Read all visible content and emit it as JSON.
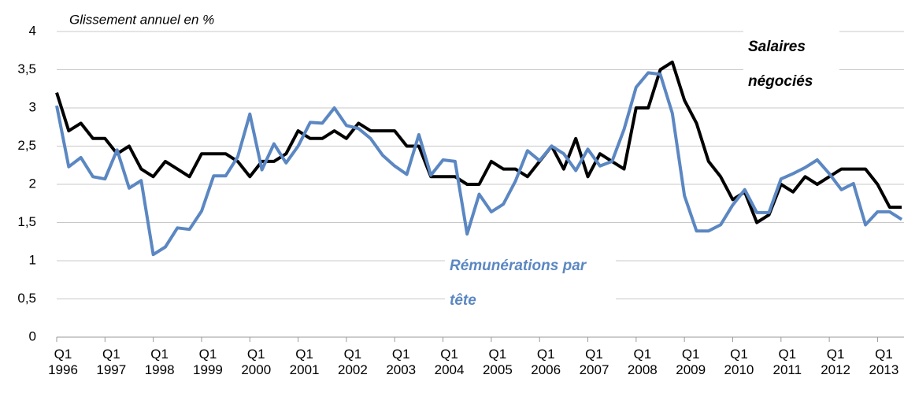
{
  "chart_data": {
    "type": "line",
    "subtitle": "Glissement annuel en %",
    "categories": [
      "Q1 1996",
      null,
      null,
      null,
      "Q1 1997",
      null,
      null,
      null,
      "Q1 1998",
      null,
      null,
      null,
      "Q1 1999",
      null,
      null,
      null,
      "Q1 2000",
      null,
      null,
      null,
      "Q1 2001",
      null,
      null,
      null,
      "Q1 2002",
      null,
      null,
      null,
      "Q1 2003",
      null,
      null,
      null,
      "Q1 2004",
      null,
      null,
      null,
      "Q1 2005",
      null,
      null,
      null,
      "Q1 2006",
      null,
      null,
      null,
      "Q1 2007",
      null,
      null,
      null,
      "Q1 2008",
      null,
      null,
      null,
      "Q1 2009",
      null,
      null,
      null,
      "Q1 2010",
      null,
      null,
      null,
      "Q1 2011",
      null,
      null,
      null,
      "Q1 2012",
      null,
      null,
      null,
      "Q1 2013",
      null,
      null
    ],
    "series": [
      {
        "name": "Salaires négociés",
        "color": "#000000",
        "values": [
          3.2,
          2.7,
          2.8,
          2.6,
          2.6,
          2.4,
          2.5,
          2.2,
          2.1,
          2.3,
          2.2,
          2.1,
          2.4,
          2.4,
          2.4,
          2.3,
          2.1,
          2.3,
          2.3,
          2.4,
          2.7,
          2.6,
          2.6,
          2.7,
          2.6,
          2.8,
          2.7,
          2.7,
          2.7,
          2.5,
          2.5,
          2.1,
          2.1,
          2.1,
          2.0,
          2.0,
          2.3,
          2.2,
          2.2,
          2.1,
          2.3,
          2.5,
          2.2,
          2.6,
          2.1,
          2.4,
          2.3,
          2.2,
          3.0,
          3.0,
          3.5,
          3.6,
          3.1,
          2.8,
          2.3,
          2.1,
          1.8,
          1.9,
          1.5,
          1.6,
          2.0,
          1.9,
          2.1,
          2.0,
          2.1,
          2.2,
          2.2,
          2.2,
          2.0,
          1.7,
          1.7
        ]
      },
      {
        "name": "Rémunérations par tête",
        "color": "#5b87c2",
        "values": [
          3.03,
          2.23,
          2.35,
          2.1,
          2.07,
          2.45,
          1.95,
          2.05,
          1.08,
          1.18,
          1.43,
          1.41,
          1.65,
          2.11,
          2.11,
          2.36,
          2.92,
          2.19,
          2.53,
          2.28,
          2.5,
          2.81,
          2.8,
          3.0,
          2.77,
          2.73,
          2.6,
          2.38,
          2.24,
          2.13,
          2.65,
          2.12,
          2.32,
          2.3,
          1.35,
          1.87,
          1.64,
          1.74,
          2.04,
          2.44,
          2.31,
          2.5,
          2.4,
          2.18,
          2.46,
          2.24,
          2.3,
          2.72,
          3.27,
          3.46,
          3.44,
          2.93,
          1.85,
          1.39,
          1.39,
          1.47,
          1.73,
          1.93,
          1.63,
          1.63,
          2.07,
          2.14,
          2.22,
          2.32,
          2.14,
          1.93,
          2.01,
          1.47,
          1.64,
          1.64,
          1.54
        ]
      }
    ],
    "ylim": [
      0,
      4
    ],
    "yticks": [
      0,
      {
        "value": 0.5,
        "label": "0,5"
      },
      1,
      {
        "value": 1.5,
        "label": "1,5"
      },
      2,
      {
        "value": 2.5,
        "label": "2,5"
      },
      3,
      {
        "value": 3.5,
        "label": "3,5"
      },
      4
    ],
    "grid": true
  }
}
